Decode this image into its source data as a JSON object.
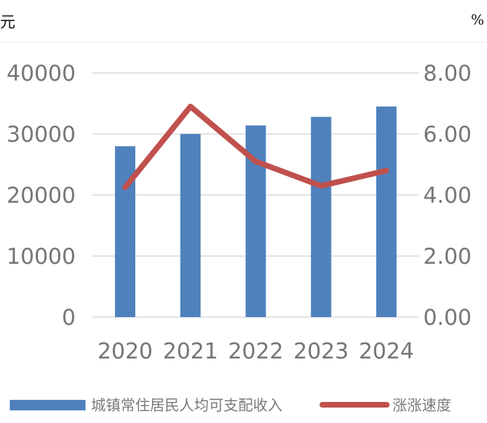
{
  "units": {
    "left": "元",
    "right": "%"
  },
  "chart_data": {
    "type": "bar",
    "categories": [
      "2020",
      "2021",
      "2022",
      "2023",
      "2024"
    ],
    "series": [
      {
        "name": "城镇常住居民人均可支配收入",
        "type": "bar",
        "axis": "left",
        "values": [
          28000,
          30000,
          31400,
          32800,
          34500
        ]
      },
      {
        "name": "涨涨速度",
        "type": "line",
        "axis": "right",
        "values": [
          4.25,
          6.9,
          5.1,
          4.3,
          4.8
        ]
      }
    ],
    "y_left": {
      "min": 0,
      "max": 40000,
      "ticks": [
        "0",
        "10000",
        "20000",
        "30000",
        "40000"
      ]
    },
    "y_right": {
      "min": 0,
      "max": 8,
      "ticks": [
        "0.00",
        "2.00",
        "4.00",
        "6.00",
        "8.00"
      ]
    },
    "colors": {
      "bar": "#4f81bd",
      "line": "#c0504d",
      "grid": "#d9d9d9",
      "tick": "#767676"
    },
    "grid": true,
    "legend_position": "bottom"
  }
}
